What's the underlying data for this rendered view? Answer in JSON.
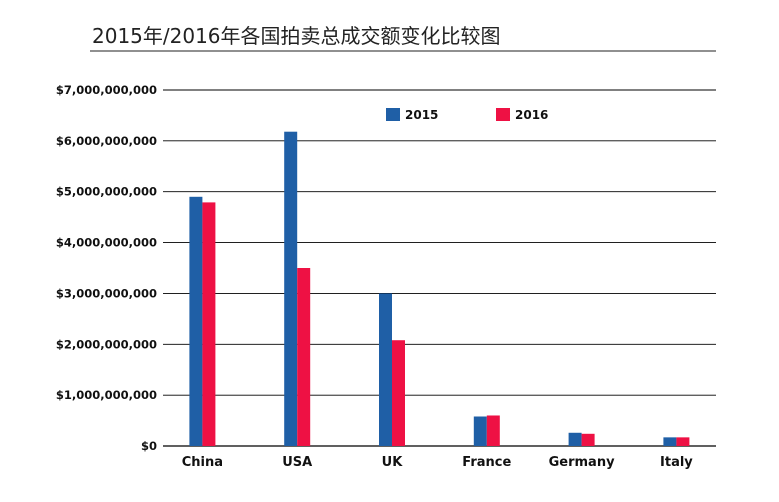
{
  "chart_data": {
    "type": "bar",
    "title": "2015年/2016年各国拍卖总成交额变化比较图",
    "categories": [
      "China",
      "USA",
      "UK",
      "France",
      "Germany",
      "Italy"
    ],
    "series": [
      {
        "name": "2015",
        "color": "#1f5fa6",
        "values": [
          4900000000,
          6180000000,
          3000000000,
          580000000,
          260000000,
          170000000
        ]
      },
      {
        "name": "2016",
        "color": "#ee1144",
        "values": [
          4790000000,
          3500000000,
          2080000000,
          600000000,
          240000000,
          170000000
        ]
      }
    ],
    "ylim": [
      0,
      7000000000
    ],
    "yticks": [
      0,
      1000000000,
      2000000000,
      3000000000,
      4000000000,
      5000000000,
      6000000000,
      7000000000
    ],
    "ytick_labels": [
      "$0",
      "$1,000,000,000",
      "$2,000,000,000",
      "$3,000,000,000",
      "$4,000,000,000",
      "$5,000,000,000",
      "$6,000,000,000",
      "$7,000,000,000"
    ],
    "xlabel": "",
    "ylabel": "",
    "grid": true,
    "legend_position": "top-center"
  }
}
